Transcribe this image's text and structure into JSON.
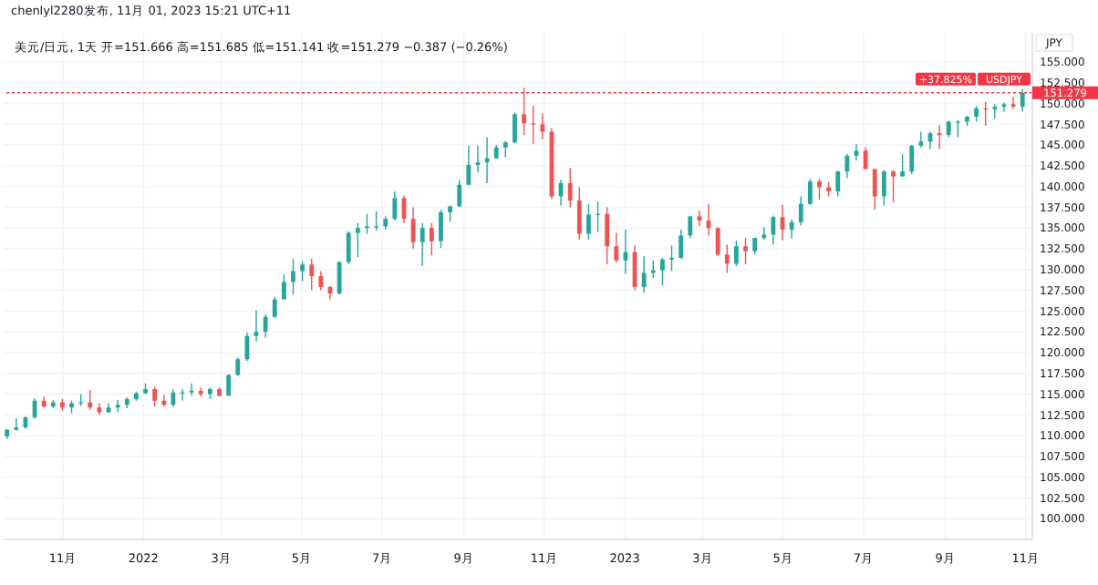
{
  "chart_data": {
    "type": "candlestick",
    "title": "chenlyl2280发布, 11月 01, 2023 15:21 UTC+11",
    "subtitle": "美元/日元, 1天 开=151.666 高=151.685 低=151.141 收=151.279 −0.387 (−0.26%)",
    "annotations": [
      "JPY",
      "USDJPY",
      "+37.825%"
    ],
    "x": [
      "2021-09-20",
      "2021-09-27",
      "2021-10-04",
      "2021-10-11",
      "2021-10-18",
      "2021-10-25",
      "2021-11-01",
      "2021-11-08",
      "2021-11-15",
      "2021-11-22",
      "2021-11-29",
      "2021-12-06",
      "2021-12-13",
      "2021-12-20",
      "2021-12-27",
      "2022-01-03",
      "2022-01-10",
      "2022-01-17",
      "2022-01-24",
      "2022-01-31",
      "2022-02-07",
      "2022-02-14",
      "2022-02-21",
      "2022-02-28",
      "2022-03-07",
      "2022-03-14",
      "2022-03-21",
      "2022-03-28",
      "2022-04-04",
      "2022-04-11",
      "2022-04-18",
      "2022-04-25",
      "2022-05-02",
      "2022-05-09",
      "2022-05-16",
      "2022-05-23",
      "2022-05-30",
      "2022-06-06",
      "2022-06-13",
      "2022-06-20",
      "2022-06-27",
      "2022-07-04",
      "2022-07-11",
      "2022-07-18",
      "2022-07-25",
      "2022-08-01",
      "2022-08-08",
      "2022-08-15",
      "2022-08-22",
      "2022-08-29",
      "2022-09-05",
      "2022-09-12",
      "2022-09-19",
      "2022-09-26",
      "2022-10-03",
      "2022-10-10",
      "2022-10-17",
      "2022-10-24",
      "2022-10-31",
      "2022-11-07",
      "2022-11-14",
      "2022-11-21",
      "2022-11-28",
      "2022-12-05",
      "2022-12-12",
      "2022-12-19",
      "2022-12-26",
      "2023-01-02",
      "2023-01-09",
      "2023-01-16",
      "2023-01-23",
      "2023-01-30",
      "2023-02-06",
      "2023-02-13",
      "2023-02-20",
      "2023-02-27",
      "2023-03-06",
      "2023-03-13",
      "2023-03-20",
      "2023-03-27",
      "2023-04-03",
      "2023-04-10",
      "2023-04-17",
      "2023-04-24",
      "2023-05-01",
      "2023-05-08",
      "2023-05-15",
      "2023-05-22",
      "2023-05-29",
      "2023-06-05",
      "2023-06-12",
      "2023-06-19",
      "2023-06-26",
      "2023-07-03",
      "2023-07-10",
      "2023-07-17",
      "2023-07-24",
      "2023-07-31",
      "2023-08-07",
      "2023-08-14",
      "2023-08-21",
      "2023-08-28",
      "2023-09-04",
      "2023-09-11",
      "2023-09-18",
      "2023-09-25",
      "2023-10-02",
      "2023-10-09",
      "2023-10-16",
      "2023-10-23",
      "2023-10-30"
    ],
    "ohlc": [
      [
        109.9,
        110.8,
        109.6,
        110.7
      ],
      [
        110.7,
        112.1,
        110.6,
        111.0
      ],
      [
        111.0,
        112.3,
        110.8,
        112.2
      ],
      [
        112.2,
        114.5,
        112.0,
        114.2
      ],
      [
        114.2,
        114.7,
        113.4,
        113.5
      ],
      [
        113.5,
        114.3,
        113.3,
        114.0
      ],
      [
        114.0,
        114.4,
        113.0,
        113.4
      ],
      [
        113.4,
        114.2,
        112.7,
        113.9
      ],
      [
        113.9,
        115.0,
        113.6,
        114.0
      ],
      [
        114.0,
        115.5,
        113.1,
        113.4
      ],
      [
        113.4,
        113.9,
        112.5,
        112.8
      ],
      [
        112.8,
        113.9,
        112.8,
        113.4
      ],
      [
        113.4,
        114.3,
        112.8,
        113.7
      ],
      [
        113.7,
        114.6,
        113.3,
        114.4
      ],
      [
        114.4,
        115.3,
        114.2,
        115.1
      ],
      [
        115.1,
        116.3,
        115.0,
        115.6
      ],
      [
        115.6,
        115.9,
        113.5,
        114.2
      ],
      [
        114.2,
        114.9,
        113.5,
        113.7
      ],
      [
        113.7,
        115.6,
        113.5,
        115.2
      ],
      [
        115.2,
        115.6,
        114.2,
        115.2
      ],
      [
        115.2,
        116.3,
        114.8,
        115.4
      ],
      [
        115.4,
        115.8,
        114.7,
        115.0
      ],
      [
        115.0,
        115.8,
        114.4,
        115.6
      ],
      [
        115.6,
        115.8,
        114.7,
        114.8
      ],
      [
        114.8,
        117.4,
        114.8,
        117.3
      ],
      [
        117.3,
        119.4,
        117.2,
        119.2
      ],
      [
        119.2,
        122.4,
        119.0,
        122.0
      ],
      [
        122.0,
        125.1,
        121.3,
        122.5
      ],
      [
        122.5,
        124.6,
        121.8,
        124.3
      ],
      [
        124.3,
        126.7,
        124.2,
        126.4
      ],
      [
        126.4,
        129.4,
        126.4,
        128.5
      ],
      [
        128.5,
        131.3,
        127.0,
        129.8
      ],
      [
        129.8,
        131.0,
        128.6,
        130.6
      ],
      [
        130.6,
        131.3,
        127.5,
        129.2
      ],
      [
        129.2,
        129.8,
        127.5,
        127.9
      ],
      [
        127.9,
        128.0,
        126.4,
        127.1
      ],
      [
        127.1,
        131.0,
        127.0,
        130.9
      ],
      [
        130.9,
        134.6,
        130.7,
        134.4
      ],
      [
        134.4,
        135.6,
        131.5,
        135.0
      ],
      [
        135.0,
        136.7,
        134.3,
        135.2
      ],
      [
        135.2,
        137.0,
        134.7,
        135.2
      ],
      [
        135.2,
        136.4,
        134.8,
        136.1
      ],
      [
        136.1,
        139.4,
        135.9,
        138.6
      ],
      [
        138.6,
        138.9,
        135.6,
        136.1
      ],
      [
        136.1,
        137.5,
        132.5,
        133.3
      ],
      [
        133.3,
        135.6,
        130.4,
        135.0
      ],
      [
        135.0,
        135.6,
        131.7,
        133.4
      ],
      [
        133.4,
        137.2,
        132.6,
        136.9
      ],
      [
        136.9,
        137.7,
        135.8,
        137.6
      ],
      [
        137.6,
        140.8,
        137.6,
        140.2
      ],
      [
        140.2,
        144.9,
        140.2,
        142.6
      ],
      [
        142.6,
        144.9,
        141.7,
        142.9
      ],
      [
        142.9,
        145.9,
        140.4,
        143.4
      ],
      [
        143.4,
        145.0,
        143.3,
        144.7
      ],
      [
        144.7,
        145.5,
        143.5,
        145.3
      ],
      [
        145.3,
        148.9,
        145.2,
        148.7
      ],
      [
        148.7,
        151.9,
        146.2,
        147.6
      ],
      [
        147.6,
        149.7,
        145.1,
        147.5
      ],
      [
        147.5,
        148.8,
        145.7,
        146.6
      ],
      [
        146.6,
        147.0,
        138.5,
        138.8
      ],
      [
        138.8,
        140.8,
        137.7,
        140.4
      ],
      [
        140.4,
        142.2,
        137.5,
        138.3
      ],
      [
        138.3,
        139.9,
        133.6,
        134.3
      ],
      [
        134.3,
        137.9,
        133.6,
        136.6
      ],
      [
        136.6,
        138.2,
        134.5,
        136.7
      ],
      [
        136.7,
        137.5,
        130.6,
        132.8
      ],
      [
        132.8,
        134.4,
        130.8,
        131.1
      ],
      [
        131.1,
        134.8,
        129.5,
        132.1
      ],
      [
        132.1,
        132.9,
        127.5,
        127.9
      ],
      [
        127.9,
        131.6,
        127.2,
        129.6
      ],
      [
        129.6,
        131.1,
        129.0,
        129.9
      ],
      [
        129.9,
        131.4,
        128.1,
        131.2
      ],
      [
        131.2,
        132.9,
        129.8,
        131.4
      ],
      [
        131.4,
        134.8,
        131.3,
        134.1
      ],
      [
        134.1,
        136.5,
        133.8,
        136.4
      ],
      [
        136.4,
        137.1,
        135.2,
        135.9
      ],
      [
        135.9,
        137.9,
        134.1,
        135.0
      ],
      [
        135.0,
        135.1,
        131.6,
        131.8
      ],
      [
        131.8,
        133.0,
        129.6,
        130.7
      ],
      [
        130.7,
        133.5,
        130.4,
        132.8
      ],
      [
        132.8,
        133.8,
        130.6,
        132.2
      ],
      [
        132.2,
        133.8,
        131.8,
        133.8
      ],
      [
        133.8,
        135.1,
        133.6,
        134.2
      ],
      [
        134.2,
        136.5,
        133.0,
        136.3
      ],
      [
        136.3,
        137.8,
        133.5,
        134.8
      ],
      [
        134.8,
        136.0,
        133.7,
        135.7
      ],
      [
        135.7,
        138.8,
        135.3,
        137.9
      ],
      [
        137.9,
        140.9,
        137.8,
        140.6
      ],
      [
        140.6,
        140.9,
        138.4,
        139.9
      ],
      [
        139.9,
        140.5,
        138.8,
        139.4
      ],
      [
        139.4,
        141.9,
        138.8,
        141.8
      ],
      [
        141.8,
        143.9,
        141.0,
        143.7
      ],
      [
        143.7,
        145.1,
        143.1,
        144.3
      ],
      [
        144.3,
        144.7,
        142.1,
        142.1
      ],
      [
        142.1,
        142.1,
        137.2,
        138.8
      ],
      [
        138.8,
        142.0,
        137.7,
        141.8
      ],
      [
        141.8,
        142.0,
        138.1,
        141.2
      ],
      [
        141.2,
        143.9,
        141.2,
        141.8
      ],
      [
        141.8,
        145.0,
        141.5,
        144.9
      ],
      [
        144.9,
        146.6,
        144.7,
        145.4
      ],
      [
        145.4,
        146.6,
        144.5,
        146.4
      ],
      [
        146.4,
        147.4,
        144.5,
        146.2
      ],
      [
        146.2,
        147.9,
        145.9,
        147.8
      ],
      [
        147.8,
        148.0,
        145.9,
        147.8
      ],
      [
        147.8,
        148.5,
        147.3,
        148.4
      ],
      [
        148.4,
        149.7,
        147.8,
        149.4
      ],
      [
        149.4,
        150.2,
        147.3,
        149.3
      ],
      [
        149.3,
        149.9,
        148.2,
        149.6
      ],
      [
        149.6,
        150.1,
        149.0,
        149.9
      ],
      [
        149.9,
        150.8,
        149.3,
        149.6
      ],
      [
        149.6,
        151.7,
        149.0,
        151.279
      ]
    ],
    "colors": [
      "#26a69a",
      "#26a69a",
      "#26a69a",
      "#26a69a",
      "#ef5350",
      "#26a69a",
      "#ef5350",
      "#26a69a",
      "#26a69a",
      "#ef5350",
      "#ef5350",
      "#26a69a",
      "#26a69a",
      "#26a69a",
      "#26a69a",
      "#26a69a",
      "#ef5350",
      "#ef5350",
      "#26a69a",
      "#26a69a",
      "#26a69a",
      "#ef5350",
      "#26a69a",
      "#ef5350",
      "#26a69a",
      "#26a69a",
      "#26a69a",
      "#26a69a",
      "#26a69a",
      "#26a69a",
      "#26a69a",
      "#26a69a",
      "#26a69a",
      "#ef5350",
      "#ef5350",
      "#ef5350",
      "#26a69a",
      "#26a69a",
      "#26a69a",
      "#26a69a",
      "#26a69a",
      "#26a69a",
      "#26a69a",
      "#ef5350",
      "#ef5350",
      "#26a69a",
      "#ef5350",
      "#26a69a",
      "#26a69a",
      "#26a69a",
      "#26a69a",
      "#26a69a",
      "#26a69a",
      "#26a69a",
      "#26a69a",
      "#26a69a",
      "#ef5350",
      "#ef5350",
      "#ef5350",
      "#ef5350",
      "#26a69a",
      "#ef5350",
      "#ef5350",
      "#26a69a",
      "#26a69a",
      "#ef5350",
      "#ef5350",
      "#26a69a",
      "#ef5350",
      "#26a69a",
      "#26a69a",
      "#26a69a",
      "#26a69a",
      "#26a69a",
      "#26a69a",
      "#ef5350",
      "#ef5350",
      "#ef5350",
      "#ef5350",
      "#26a69a",
      "#ef5350",
      "#26a69a",
      "#26a69a",
      "#26a69a",
      "#ef5350",
      "#26a69a",
      "#26a69a",
      "#26a69a",
      "#ef5350",
      "#ef5350",
      "#26a69a",
      "#26a69a",
      "#26a69a",
      "#ef5350",
      "#ef5350",
      "#26a69a",
      "#ef5350",
      "#26a69a",
      "#26a69a",
      "#26a69a",
      "#26a69a",
      "#ef5350",
      "#26a69a",
      "#26a69a",
      "#26a69a",
      "#26a69a",
      "#ef5350",
      "#26a69a",
      "#26a69a",
      "#ef5350",
      "#26a69a"
    ],
    "xlim": [
      "2021-09-17",
      "2023-11-06"
    ],
    "xticks": [
      {
        "value": "2021-11-01",
        "label": "11月"
      },
      {
        "value": "2022-01-01",
        "label": "2022"
      },
      {
        "value": "2022-03-01",
        "label": "3月"
      },
      {
        "value": "2022-05-01",
        "label": "5月"
      },
      {
        "value": "2022-07-01",
        "label": "7月"
      },
      {
        "value": "2022-09-01",
        "label": "9月"
      },
      {
        "value": "2022-11-01",
        "label": "11月"
      },
      {
        "value": "2023-01-01",
        "label": "2023"
      },
      {
        "value": "2023-03-01",
        "label": "3月"
      },
      {
        "value": "2023-05-01",
        "label": "5月"
      },
      {
        "value": "2023-07-01",
        "label": "7月"
      },
      {
        "value": "2023-09-01",
        "label": "9月"
      },
      {
        "value": "2023-11-01",
        "label": "11月"
      }
    ],
    "ylim": [
      97.5,
      158.5
    ],
    "yticks": [
      {
        "value": 100,
        "label": "100.000"
      },
      {
        "value": 102.5,
        "label": "102.500"
      },
      {
        "value": 105,
        "label": "105.000"
      },
      {
        "value": 107.5,
        "label": "107.500"
      },
      {
        "value": 110,
        "label": "110.000"
      },
      {
        "value": 112.5,
        "label": "112.500"
      },
      {
        "value": 115,
        "label": "115.000"
      },
      {
        "value": 117.5,
        "label": "117.500"
      },
      {
        "value": 120,
        "label": "120.000"
      },
      {
        "value": 122.5,
        "label": "122.500"
      },
      {
        "value": 125,
        "label": "125.000"
      },
      {
        "value": 127.5,
        "label": "127.500"
      },
      {
        "value": 130,
        "label": "130.000"
      },
      {
        "value": 132.5,
        "label": "132.500"
      },
      {
        "value": 135,
        "label": "135.000"
      },
      {
        "value": 137.5,
        "label": "137.500"
      },
      {
        "value": 140,
        "label": "140.000"
      },
      {
        "value": 142.5,
        "label": "142.500"
      },
      {
        "value": 145,
        "label": "145.000"
      },
      {
        "value": 147.5,
        "label": "147.500"
      },
      {
        "value": 150,
        "label": "150.000"
      },
      {
        "value": 152.5,
        "label": "152.500"
      },
      {
        "value": 155,
        "label": "155.000"
      }
    ],
    "ref_lines": [
      {
        "axis": "y",
        "value": 151.279,
        "label": "151.279",
        "color": "#f23645",
        "line_style": "dotted"
      }
    ],
    "grid": true
  }
}
